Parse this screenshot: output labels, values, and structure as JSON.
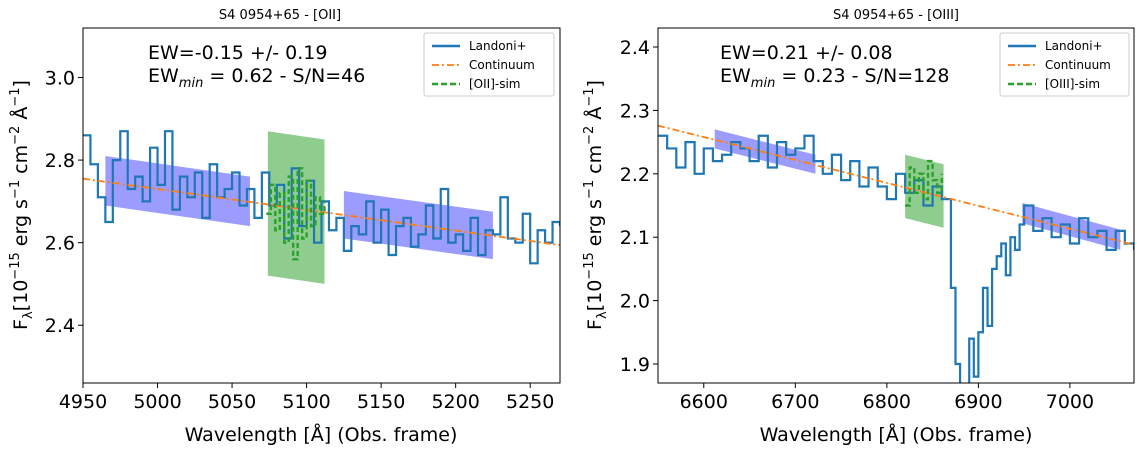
{
  "chart_data": [
    {
      "type": "line",
      "title": "S4 0954+65 - [OII]",
      "xlabel": "Wavelength [Å] (Obs. frame)",
      "ylabel": "F_λ[10^-15 erg s^-1 cm^-2 Å^-1]",
      "xlim": [
        4950,
        5270
      ],
      "ylim": [
        2.26,
        3.12
      ],
      "xticks": [
        4950,
        5000,
        5050,
        5100,
        5150,
        5200,
        5250
      ],
      "yticks": [
        2.4,
        2.6,
        2.8,
        3.0
      ],
      "xtick_labels": [
        "4950",
        "5000",
        "5050",
        "5100",
        "5150",
        "5200",
        "5250"
      ],
      "ytick_labels": [
        "2.4",
        "2.6",
        "2.8",
        "3.0"
      ],
      "annotation_ew": "EW=-0.15 +/- 0.19",
      "annotation_ewmin_value": "= 0.62 - S/N=46",
      "legend_position": "top-right",
      "legend": [
        {
          "label": "Landoni+",
          "color": "#1f77b4",
          "style": "solid"
        },
        {
          "label": "Continuum",
          "color": "#ff7f0e",
          "style": "dashdot"
        },
        {
          "label": "[OII]-sim",
          "color": "#2ca02c",
          "style": "dashed"
        }
      ],
      "continuum": {
        "x": [
          4950,
          5270
        ],
        "y": [
          2.755,
          2.594
        ]
      },
      "side_bands": [
        {
          "x": [
            4965,
            5062
          ],
          "y_top": [
            2.81,
            2.76
          ],
          "y_bottom": [
            2.69,
            2.64
          ],
          "color": "#7b7bff"
        },
        {
          "x": [
            5125,
            5225
          ],
          "y_top": [
            2.725,
            2.675
          ],
          "y_bottom": [
            2.61,
            2.56
          ],
          "color": "#7b7bff"
        }
      ],
      "line_band": {
        "x": [
          5074,
          5112
        ],
        "y_top": [
          2.87,
          2.85
        ],
        "y_bottom": [
          2.52,
          2.5
        ],
        "color": "#5fb85f"
      },
      "series": [
        {
          "name": "Landoni+",
          "color": "#1f77b4",
          "x": [
            4950,
            4955,
            4960,
            4965,
            4970,
            4975,
            4980,
            4985,
            4990,
            4995,
            5000,
            5005,
            5010,
            5015,
            5020,
            5025,
            5030,
            5035,
            5040,
            5045,
            5050,
            5055,
            5060,
            5065,
            5070,
            5075,
            5080,
            5085,
            5090,
            5095,
            5100,
            5105,
            5110,
            5115,
            5120,
            5125,
            5130,
            5135,
            5140,
            5145,
            5150,
            5155,
            5160,
            5165,
            5170,
            5175,
            5180,
            5185,
            5190,
            5195,
            5200,
            5205,
            5210,
            5215,
            5220,
            5225,
            5230,
            5235,
            5240,
            5245,
            5250,
            5255,
            5260,
            5265,
            5270
          ],
          "y": [
            2.86,
            2.79,
            2.71,
            2.65,
            2.8,
            2.87,
            2.73,
            2.76,
            2.7,
            2.83,
            2.74,
            2.87,
            2.68,
            2.76,
            2.71,
            2.77,
            2.66,
            2.79,
            2.71,
            2.73,
            2.77,
            2.69,
            2.73,
            2.66,
            2.77,
            2.69,
            2.74,
            2.61,
            2.78,
            2.64,
            2.75,
            2.6,
            2.7,
            2.63,
            2.66,
            2.58,
            2.64,
            2.62,
            2.7,
            2.6,
            2.68,
            2.57,
            2.64,
            2.66,
            2.59,
            2.62,
            2.69,
            2.61,
            2.73,
            2.6,
            2.62,
            2.58,
            2.66,
            2.57,
            2.63,
            2.62,
            2.71,
            2.61,
            2.6,
            2.67,
            2.55,
            2.63,
            2.6,
            2.65,
            2.64
          ]
        },
        {
          "name": "[OII]-sim",
          "color": "#2ca02c",
          "x": [
            5073,
            5076,
            5079,
            5082,
            5085,
            5088,
            5091,
            5094,
            5097,
            5100,
            5103,
            5106,
            5109,
            5112
          ],
          "y": [
            2.67,
            2.74,
            2.63,
            2.72,
            2.6,
            2.76,
            2.56,
            2.78,
            2.61,
            2.75,
            2.64,
            2.71,
            2.67,
            2.7
          ]
        }
      ]
    },
    {
      "type": "line",
      "title": "S4 0954+65 - [OIII]",
      "xlabel": "Wavelength [Å] (Obs. frame)",
      "ylabel": "F_λ[10^-15 erg s^-1 cm^-2 Å^-1]",
      "xlim": [
        6550,
        7070
      ],
      "ylim": [
        1.87,
        2.43
      ],
      "xticks": [
        6600,
        6700,
        6800,
        6900,
        7000
      ],
      "yticks": [
        1.9,
        2.0,
        2.1,
        2.2,
        2.3,
        2.4
      ],
      "xtick_labels": [
        "6600",
        "6700",
        "6800",
        "6900",
        "7000"
      ],
      "ytick_labels": [
        "1.9",
        "2.0",
        "2.1",
        "2.2",
        "2.3",
        "2.4"
      ],
      "annotation_ew": "EW=0.21 +/- 0.08",
      "annotation_ewmin_value": "= 0.23 - S/N=128",
      "legend_position": "top-right",
      "legend": [
        {
          "label": "Landoni+",
          "color": "#1f77b4",
          "style": "solid"
        },
        {
          "label": "Continuum",
          "color": "#ff7f0e",
          "style": "dashdot"
        },
        {
          "label": "[OIII]-sim",
          "color": "#2ca02c",
          "style": "dashed"
        }
      ],
      "continuum": {
        "x": [
          6550,
          7070
        ],
        "y": [
          2.276,
          2.088
        ]
      },
      "side_bands": [
        {
          "x": [
            6612,
            6722
          ],
          "y_top": [
            2.27,
            2.23
          ],
          "y_bottom": [
            2.24,
            2.2
          ],
          "color": "#7b7bff"
        },
        {
          "x": [
            6948,
            7055
          ],
          "y_top": [
            2.154,
            2.112
          ],
          "y_bottom": [
            2.122,
            2.08
          ],
          "color": "#7b7bff"
        }
      ],
      "line_band": {
        "x": [
          6820,
          6862
        ],
        "y_top": [
          2.23,
          2.215
        ],
        "y_bottom": [
          2.13,
          2.115
        ],
        "color": "#5fb85f"
      },
      "series": [
        {
          "name": "Landoni+",
          "color": "#1f77b4",
          "x": [
            6550,
            6560,
            6570,
            6580,
            6590,
            6600,
            6610,
            6620,
            6630,
            6640,
            6650,
            6660,
            6670,
            6680,
            6690,
            6700,
            6710,
            6720,
            6730,
            6740,
            6750,
            6760,
            6770,
            6780,
            6790,
            6800,
            6810,
            6820,
            6830,
            6840,
            6850,
            6860,
            6870,
            6875,
            6880,
            6885,
            6890,
            6895,
            6900,
            6905,
            6910,
            6915,
            6920,
            6925,
            6930,
            6935,
            6940,
            6945,
            6950,
            6960,
            6970,
            6980,
            6990,
            7000,
            7010,
            7020,
            7030,
            7040,
            7050,
            7060,
            7070
          ],
          "y": [
            2.26,
            2.24,
            2.21,
            2.25,
            2.2,
            2.24,
            2.22,
            2.23,
            2.25,
            2.24,
            2.22,
            2.26,
            2.21,
            2.25,
            2.23,
            2.24,
            2.26,
            2.22,
            2.2,
            2.23,
            2.19,
            2.22,
            2.18,
            2.21,
            2.18,
            2.16,
            2.2,
            2.17,
            2.19,
            2.15,
            2.18,
            2.16,
            2.02,
            1.9,
            1.83,
            1.85,
            1.94,
            1.88,
            1.95,
            2.02,
            1.96,
            2.05,
            2.07,
            2.09,
            2.04,
            2.1,
            2.08,
            2.12,
            2.15,
            2.11,
            2.13,
            2.1,
            2.12,
            2.09,
            2.13,
            2.1,
            2.11,
            2.08,
            2.11,
            2.09,
            2.08
          ]
        },
        {
          "name": "[OIII]-sim",
          "color": "#2ca02c",
          "x": [
            6820,
            6825,
            6830,
            6835,
            6840,
            6845,
            6850,
            6855,
            6860
          ],
          "y": [
            2.15,
            2.21,
            2.17,
            2.2,
            2.16,
            2.22,
            2.19,
            2.17,
            2.2
          ]
        }
      ]
    }
  ]
}
